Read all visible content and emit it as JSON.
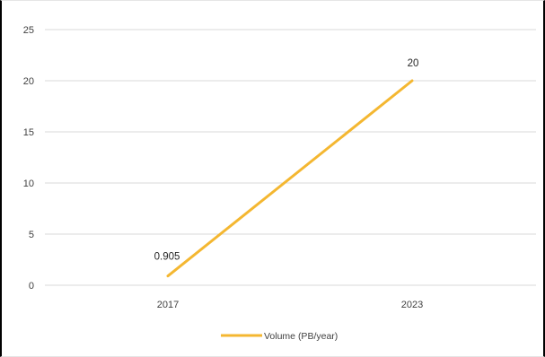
{
  "chart_data": {
    "type": "line",
    "categories": [
      "2017",
      "2023"
    ],
    "series": [
      {
        "name": "Volume (PB/year)",
        "values": [
          0.905,
          20
        ],
        "color": "#F4B731"
      }
    ],
    "data_labels": [
      "0.905",
      "20"
    ],
    "y_ticks": [
      "0",
      "5",
      "10",
      "15",
      "20",
      "25"
    ],
    "ylim": [
      0,
      25
    ],
    "grid": true,
    "legend_position": "bottom"
  }
}
